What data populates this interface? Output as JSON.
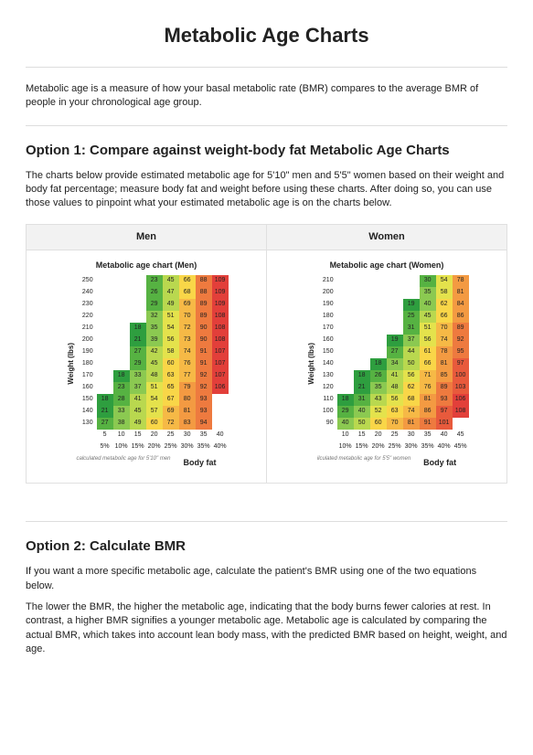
{
  "page_title": "Metabolic Age Charts",
  "intro": "Metabolic age is a measure of how your basal metabolic rate (BMR) compares to the average BMR of people in your chronological age group.",
  "option1": {
    "heading": "Option 1: Compare against weight-body fat Metabolic Age Charts",
    "desc": "The charts below provide estimated metabolic age for 5'10\" men and 5'5\" women based on their weight and body fat percentage; measure body fat and weight before using these charts. After doing so, you can use those values to pinpoint what your estimated metabolic age is on the charts below."
  },
  "option2": {
    "heading": "Option 2: Calculate BMR",
    "p1": "If you want a more specific metabolic age, calculate the patient's BMR using one of the two equations below.",
    "p2": "The lower the BMR, the higher the metabolic age, indicating that the body burns fewer calories at rest. In contrast, a higher BMR signifies a younger metabolic age. Metabolic age is calculated by comparing the actual BMR, which takes into account lean body mass, with the predicted BMR based on height, weight, and age."
  },
  "colors": {
    "scale": [
      "#2e9e3f",
      "#56b242",
      "#8bc951",
      "#b9d84f",
      "#e4e24c",
      "#f9d648",
      "#f6b946",
      "#f39a42",
      "#ee7a3f",
      "#e85a3c",
      "#e23f3a"
    ]
  },
  "men": {
    "panel_label": "Men",
    "chart_title": "Metabolic age chart (Men)",
    "ylabel": "Weight (lbs)",
    "xlabel": "Body fat",
    "sublabel": "calculated metabolic age for 5'10\" men",
    "y_ticks": [
      250,
      240,
      230,
      220,
      210,
      200,
      190,
      180,
      170,
      160,
      150,
      140,
      130
    ],
    "x_ticks": [
      "5",
      "10",
      "15",
      "20",
      "25",
      "30",
      "35",
      "40"
    ],
    "x_pct": [
      "5%",
      "10%",
      "15%",
      "20%",
      "25%",
      "30%",
      "35%",
      "40%"
    ],
    "rows": [
      [
        null,
        null,
        null,
        23,
        45,
        66,
        88,
        109
      ],
      [
        null,
        null,
        null,
        26,
        47,
        68,
        88,
        109
      ],
      [
        null,
        null,
        null,
        29,
        49,
        69,
        89,
        109
      ],
      [
        null,
        null,
        null,
        32,
        51,
        70,
        89,
        108
      ],
      [
        null,
        null,
        18,
        35,
        54,
        72,
        90,
        108
      ],
      [
        null,
        null,
        21,
        39,
        56,
        73,
        90,
        108
      ],
      [
        null,
        null,
        27,
        42,
        58,
        74,
        91,
        107
      ],
      [
        null,
        null,
        29,
        45,
        60,
        76,
        91,
        107
      ],
      [
        null,
        18,
        33,
        48,
        63,
        77,
        92,
        107
      ],
      [
        null,
        23,
        37,
        51,
        65,
        79,
        92,
        106
      ],
      [
        18,
        28,
        41,
        54,
        67,
        80,
        93,
        null
      ],
      [
        21,
        33,
        45,
        57,
        69,
        81,
        93,
        null
      ],
      [
        27,
        38,
        49,
        60,
        72,
        83,
        94,
        null
      ]
    ]
  },
  "women": {
    "panel_label": "Women",
    "chart_title": "Metabolic age chart (Women)",
    "ylabel": "Weight (lbs)",
    "xlabel": "Body fat",
    "sublabel": "ilculated metabolic age for 5'5\" women",
    "y_ticks": [
      210,
      200,
      190,
      180,
      170,
      160,
      150,
      140,
      130,
      120,
      110,
      100,
      90
    ],
    "x_ticks": [
      "10",
      "15",
      "20",
      "25",
      "30",
      "35",
      "40",
      "45"
    ],
    "x_pct": [
      "10%",
      "15%",
      "20%",
      "25%",
      "30%",
      "35%",
      "40%",
      "45%"
    ],
    "rows": [
      [
        null,
        null,
        null,
        null,
        null,
        30,
        54,
        78
      ],
      [
        null,
        null,
        null,
        null,
        null,
        35,
        58,
        81
      ],
      [
        null,
        null,
        null,
        null,
        19,
        40,
        62,
        84
      ],
      [
        null,
        null,
        null,
        null,
        25,
        45,
        66,
        86
      ],
      [
        null,
        null,
        null,
        null,
        31,
        51,
        70,
        89
      ],
      [
        null,
        null,
        null,
        19,
        37,
        56,
        74,
        92
      ],
      [
        null,
        null,
        null,
        27,
        44,
        61,
        78,
        95
      ],
      [
        null,
        null,
        18,
        34,
        50,
        66,
        81,
        97
      ],
      [
        null,
        18,
        26,
        41,
        56,
        71,
        85,
        100
      ],
      [
        null,
        21,
        35,
        48,
        62,
        76,
        89,
        103
      ],
      [
        18,
        31,
        43,
        56,
        68,
        81,
        93,
        106
      ],
      [
        29,
        40,
        52,
        63,
        74,
        86,
        97,
        108
      ],
      [
        40,
        50,
        60,
        70,
        81,
        91,
        101,
        null
      ]
    ]
  }
}
